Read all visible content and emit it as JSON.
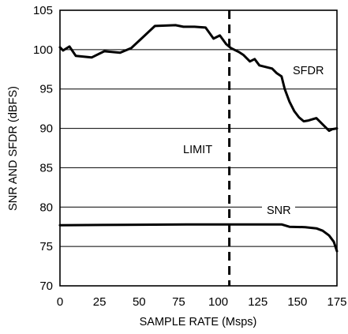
{
  "chart_data": {
    "type": "line",
    "xlabel": "SAMPLE RATE (Msps)",
    "ylabel": "SNR AND SFDR (dBFS)",
    "xlim": [
      0,
      175
    ],
    "ylim": [
      70,
      105
    ],
    "xticks": [
      0,
      25,
      50,
      75,
      100,
      125,
      150,
      175
    ],
    "yticks": [
      70,
      75,
      80,
      85,
      90,
      95,
      100,
      105
    ],
    "grid": {
      "horizontal": true,
      "vertical": false
    },
    "series": [
      {
        "name": "SFDR",
        "x": [
          0,
          2,
          6,
          10,
          20,
          28,
          38,
          45,
          52,
          60,
          73,
          78,
          85,
          92,
          97,
          101,
          105,
          108,
          113,
          116,
          120,
          123,
          126,
          130,
          134,
          137,
          140,
          142,
          145,
          148,
          151,
          154,
          157,
          162,
          166,
          170,
          172,
          175
        ],
        "y": [
          100.3,
          99.9,
          100.4,
          99.2,
          99.0,
          99.8,
          99.6,
          100.2,
          101.5,
          103.0,
          103.1,
          102.9,
          102.9,
          102.8,
          101.4,
          101.8,
          100.7,
          100.2,
          99.7,
          99.3,
          98.5,
          98.8,
          98.0,
          97.8,
          97.6,
          97.0,
          96.6,
          95.0,
          93.4,
          92.2,
          91.4,
          90.9,
          91.0,
          91.3,
          90.5,
          89.7,
          89.9,
          90.0
        ]
      },
      {
        "name": "SNR",
        "x": [
          0,
          40,
          80,
          110,
          140,
          145,
          155,
          162,
          166,
          170,
          173,
          175
        ],
        "y": [
          77.7,
          77.75,
          77.8,
          77.8,
          77.8,
          77.5,
          77.45,
          77.3,
          77.0,
          76.4,
          75.6,
          74.4
        ]
      }
    ],
    "annotations": [
      {
        "text": "LIMIT",
        "x": 107,
        "type": "vertical-dashed-line"
      },
      {
        "text": "SFDR",
        "series": "SFDR"
      },
      {
        "text": "SNR",
        "series": "SNR"
      }
    ]
  }
}
